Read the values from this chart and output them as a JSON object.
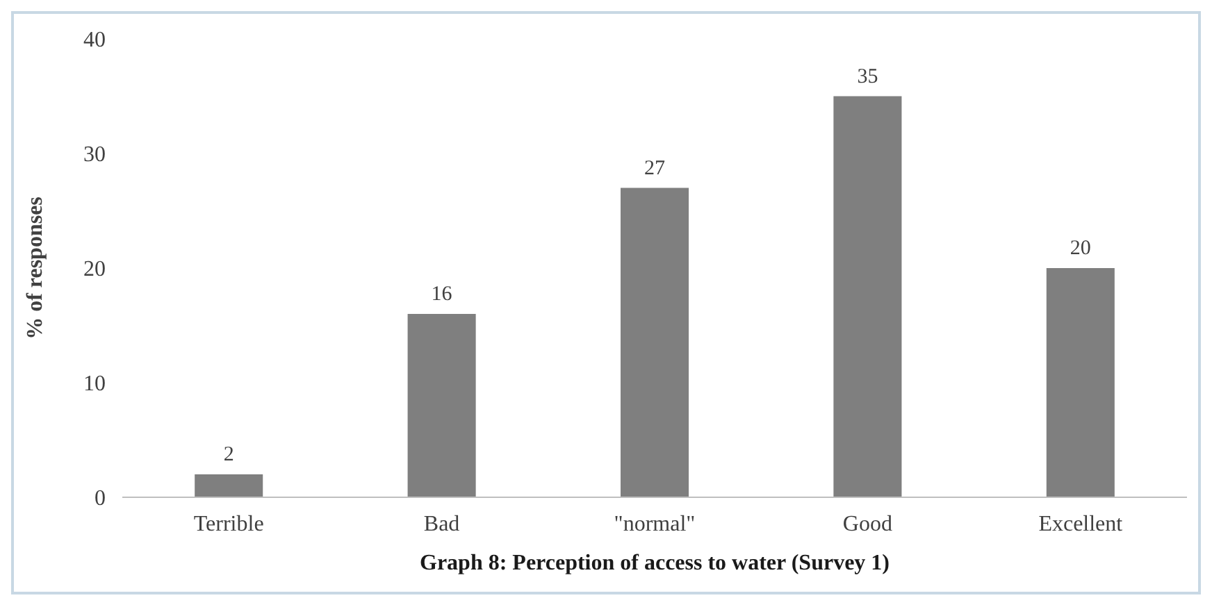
{
  "chart_data": {
    "type": "bar",
    "title": "Graph 8: Perception of access to water (Survey 1)",
    "ylabel": "% of responses",
    "categories": [
      "Terrible",
      "Bad",
      "\"normal\"",
      "Good",
      "Excellent"
    ],
    "values": [
      2,
      16,
      27,
      35,
      20
    ],
    "color": "#7f7f7f",
    "ylim": [
      0,
      40
    ],
    "yticks": [
      0,
      10,
      20,
      30,
      40
    ],
    "data_labels": true
  }
}
